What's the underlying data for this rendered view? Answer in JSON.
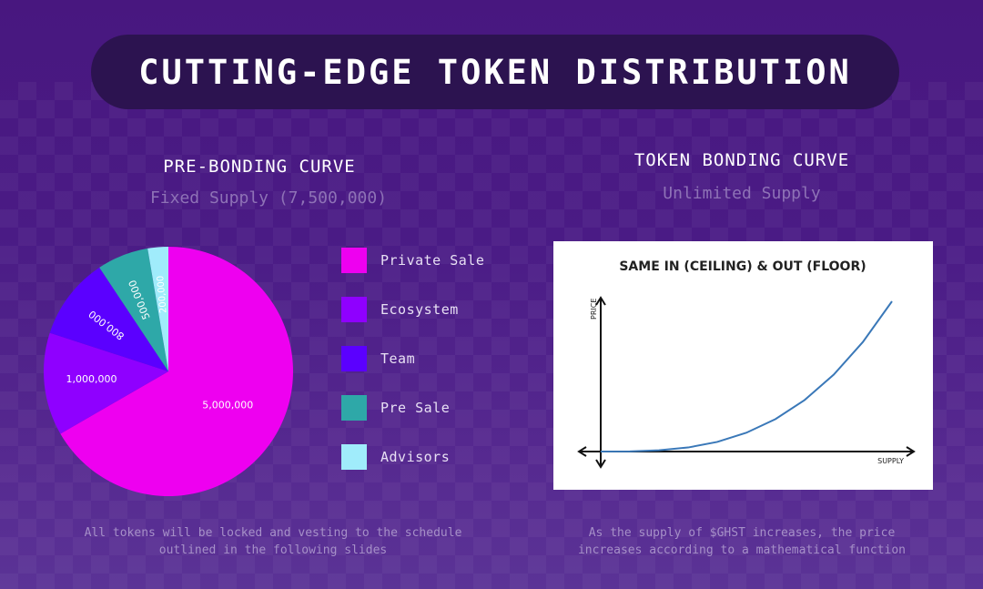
{
  "title": "CUTTING-EDGE TOKEN DISTRIBUTION",
  "left": {
    "heading": "PRE-BONDING CURVE",
    "subheading": "Fixed Supply (7,500,000)",
    "footer_line1": "All tokens will be locked and vesting to the schedule",
    "footer_line2": "outlined in the following slides"
  },
  "right": {
    "heading": "TOKEN BONDING CURVE",
    "subheading": "Unlimited Supply",
    "footer_line1": "As the supply of $GHST increases, the price",
    "footer_line2": "increases according to a mathematical function"
  },
  "chart_data": [
    {
      "type": "pie",
      "title": "",
      "total": 7500000,
      "start": "12 o'clock, clockwise",
      "slices": [
        {
          "label": "Private Sale",
          "value": 5000000,
          "display": "5,000,000",
          "color": "#ee00f0"
        },
        {
          "label": "Ecosystem",
          "value": 1000000,
          "display": "1,000,000",
          "color": "#8f00ff"
        },
        {
          "label": "Team",
          "value": 800000,
          "display": "800,000",
          "color": "#5b00ff"
        },
        {
          "label": "Pre Sale",
          "value": 500000,
          "display": "500,000",
          "color": "#2ea8a8"
        },
        {
          "label": "Advisors",
          "value": 200000,
          "display": "200,000",
          "color": "#a0ecfb"
        }
      ],
      "legend": "right"
    },
    {
      "type": "line",
      "title": "SAME IN (CEILING) & OUT (FLOOR)",
      "xlabel": "SUPPLY",
      "ylabel": "PRICE",
      "x": [
        0,
        0.1,
        0.2,
        0.3,
        0.4,
        0.5,
        0.6,
        0.7,
        0.8,
        0.9,
        1.0
      ],
      "y": [
        0,
        0.001,
        0.008,
        0.027,
        0.064,
        0.125,
        0.216,
        0.343,
        0.512,
        0.729,
        1.0
      ],
      "xlim": [
        0,
        1.05
      ],
      "ylim": [
        0,
        1.05
      ],
      "color": "#3a78b8"
    }
  ]
}
